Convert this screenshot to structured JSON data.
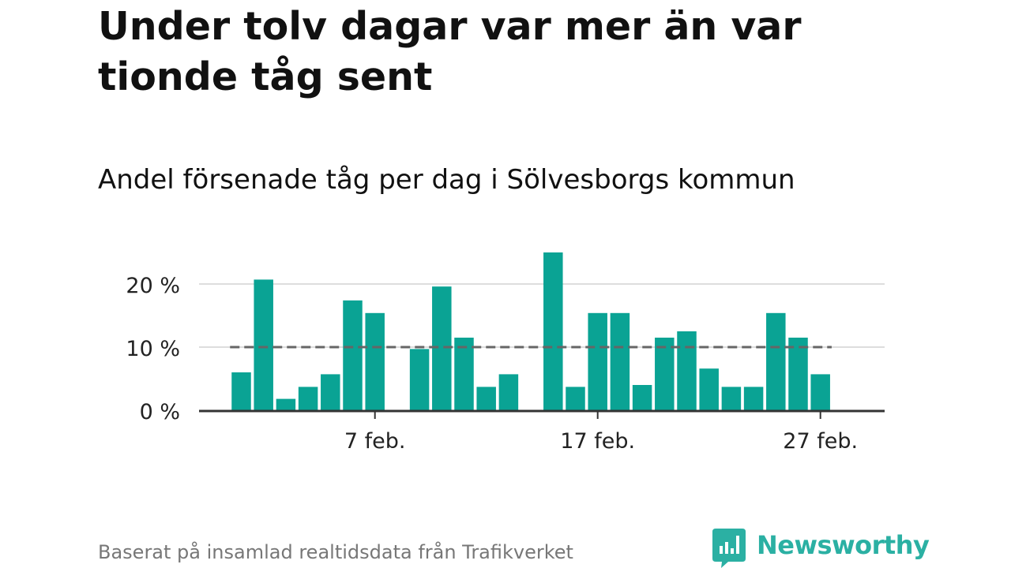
{
  "header": {
    "title": "Under tolv dagar var mer än var tionde tåg sent",
    "subtitle": "Andel försenade tåg per dag i Sölvesborgs kommun"
  },
  "footer": {
    "source_note": "Baserat på insamlad realtidsdata från Trafikverket",
    "brand_name": "Newsworthy",
    "brand_icon": "newsworthy-bar-chart-bubble-icon"
  },
  "colors": {
    "bar": "#0aa394",
    "brand": "#2bb0a3",
    "reference_line": "#666666",
    "grid": "#dddddd",
    "axis": "#333333"
  },
  "chart_data": {
    "type": "bar",
    "unit": "%",
    "x_tick_labels": [
      "7 feb.",
      "17 feb.",
      "27 feb."
    ],
    "days": [
      {
        "date": "2024-02-01",
        "value": 6
      },
      {
        "date": "2024-02-02",
        "value": 20.7
      },
      {
        "date": "2024-02-03",
        "value": 1.8
      },
      {
        "date": "2024-02-04",
        "value": 3.7
      },
      {
        "date": "2024-02-05",
        "value": 5.7
      },
      {
        "date": "2024-02-06",
        "value": 17.4
      },
      {
        "date": "2024-02-07",
        "value": 15.4
      },
      {
        "date": "2024-02-08",
        "value": null
      },
      {
        "date": "2024-02-09",
        "value": 9.7
      },
      {
        "date": "2024-02-10",
        "value": 19.6
      },
      {
        "date": "2024-02-11",
        "value": 11.5
      },
      {
        "date": "2024-02-12",
        "value": 3.7
      },
      {
        "date": "2024-02-13",
        "value": 5.7
      },
      {
        "date": "2024-02-14",
        "value": null
      },
      {
        "date": "2024-02-15",
        "value": 25
      },
      {
        "date": "2024-02-16",
        "value": 3.7
      },
      {
        "date": "2024-02-17",
        "value": 15.4
      },
      {
        "date": "2024-02-18",
        "value": 15.4
      },
      {
        "date": "2024-02-19",
        "value": 4
      },
      {
        "date": "2024-02-20",
        "value": 11.5
      },
      {
        "date": "2024-02-21",
        "value": 12.5
      },
      {
        "date": "2024-02-22",
        "value": 6.6
      },
      {
        "date": "2024-02-23",
        "value": 3.7
      },
      {
        "date": "2024-02-24",
        "value": 3.7
      },
      {
        "date": "2024-02-25",
        "value": 15.4
      },
      {
        "date": "2024-02-26",
        "value": 11.5
      },
      {
        "date": "2024-02-27",
        "value": 5.7
      }
    ],
    "reference_line": {
      "value": 10,
      "style": "dashed"
    },
    "y_ticks": [
      {
        "value": 0,
        "label": "0 %"
      },
      {
        "value": 10,
        "label": "10 %"
      },
      {
        "value": 20,
        "label": "20 %"
      }
    ],
    "ylim": [
      0,
      25
    ],
    "grid": "horizontal",
    "legend": "none"
  }
}
